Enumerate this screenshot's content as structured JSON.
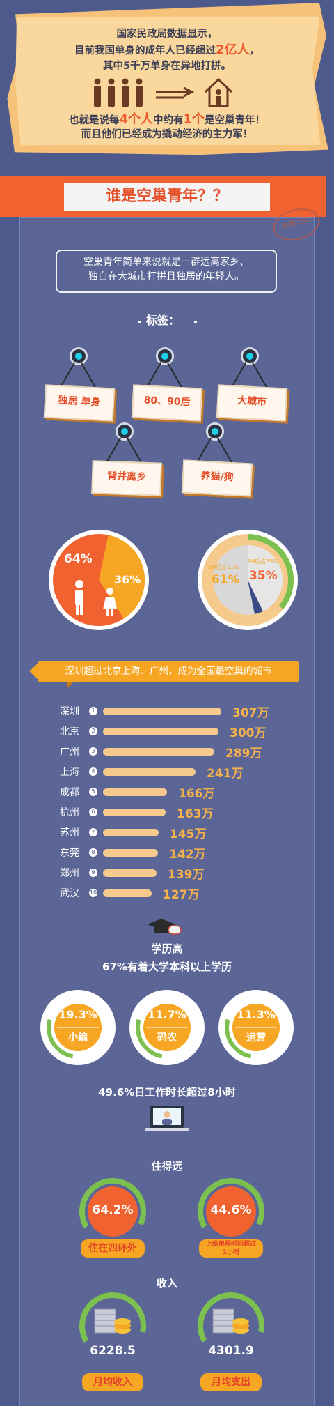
{
  "intro": {
    "line1": "国家民政局数据显示，",
    "line2a": "目前我国单身的成年人已经超过",
    "line2b": "2亿人",
    "line2c": "，",
    "line3": "其中5千万单身在异地打拼。",
    "line4a": "也就是说每",
    "line4b": "4个人",
    "line4c": "中约有",
    "line4d": "1个",
    "line4e": "是空巢青年！",
    "line5": "而且他们已经成为撬动经济的主力军！"
  },
  "banner": {
    "title": "谁是空巢青年？？",
    "stamp": "极致公司"
  },
  "definition": {
    "line1": "空巢青年简单来说就是一群远离家乡、",
    "line2": "独自在大城市打拼且独居的年轻人。"
  },
  "tags": {
    "title": "标签：",
    "items": [
      "独居 单身",
      "80、90后",
      "大城市",
      "背井离乡",
      "养猫/狗"
    ]
  },
  "gender": {
    "male": "64%",
    "female": "36%"
  },
  "age": {
    "post80_label": "80后占61%",
    "post80": "61%",
    "post90_label": "90后占35%",
    "post90": "35%"
  },
  "cities": {
    "title": "深圳超过北京上海、广州，成为全国最空巢的城市",
    "items": [
      {
        "name": "深圳",
        "rank": "1",
        "value": "307万",
        "n": 307
      },
      {
        "name": "北京",
        "rank": "2",
        "value": "300万",
        "n": 300
      },
      {
        "name": "广州",
        "rank": "3",
        "value": "289万",
        "n": 289
      },
      {
        "name": "上海",
        "rank": "4",
        "value": "241万",
        "n": 241
      },
      {
        "name": "成都",
        "rank": "5",
        "value": "166万",
        "n": 166
      },
      {
        "name": "杭州",
        "rank": "6",
        "value": "163万",
        "n": 163
      },
      {
        "name": "苏州",
        "rank": "7",
        "value": "145万",
        "n": 145
      },
      {
        "name": "东莞",
        "rank": "8",
        "value": "142万",
        "n": 142
      },
      {
        "name": "郑州",
        "rank": "9",
        "value": "139万",
        "n": 139
      },
      {
        "name": "武汉",
        "rank": "10",
        "value": "127万",
        "n": 127
      }
    ]
  },
  "education": {
    "title": "学历高",
    "subtitle": "67%有着大学本科以上学历",
    "jobs": [
      {
        "value": "19.3%",
        "label": "小编"
      },
      {
        "value": "11.7%",
        "label": "码农"
      },
      {
        "value": "11.3%",
        "label": "运营"
      }
    ]
  },
  "work": {
    "text": "49.6%日工作时长超过8小时"
  },
  "living": {
    "title": "住得远",
    "items": [
      {
        "value": "64.2%",
        "label": "住在四环外"
      },
      {
        "value": "44.6%",
        "label": "上班单程时间超过1小时"
      }
    ]
  },
  "income": {
    "title": "收入",
    "items": [
      {
        "value": "6228.5",
        "label": "月均收入"
      },
      {
        "value": "4301.9",
        "label": "月均支出"
      }
    ]
  }
}
